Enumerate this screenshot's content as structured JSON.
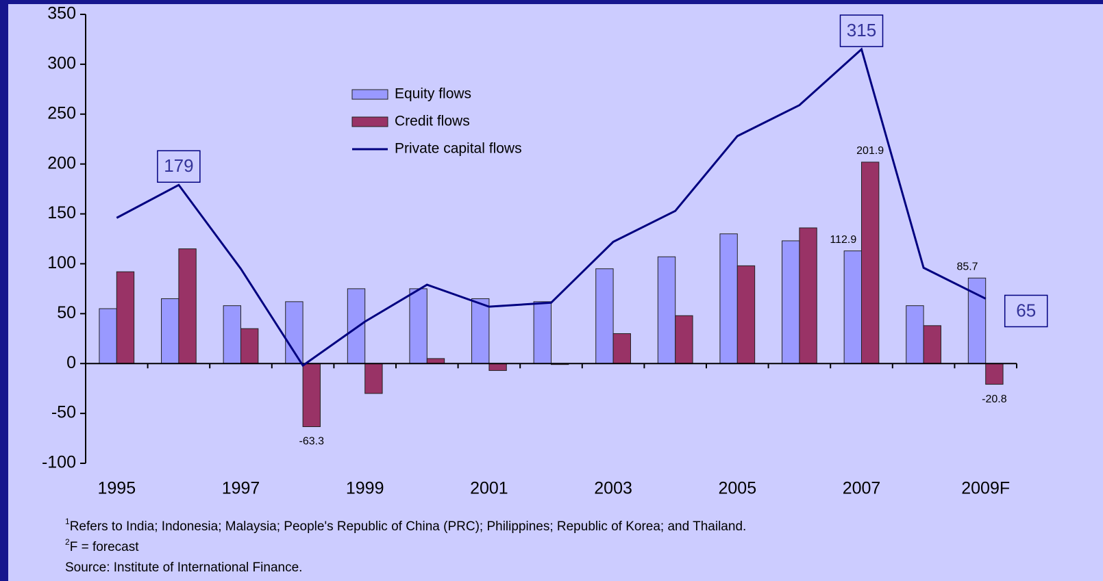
{
  "chart_data": {
    "type": "bar_line",
    "categories": [
      "1995",
      null,
      "1997",
      null,
      "1999",
      null,
      "2001",
      null,
      "2003",
      null,
      "2005",
      null,
      "2007",
      null,
      "2009F"
    ],
    "series": [
      {
        "name": "Equity flows",
        "type": "bar",
        "color": "#9999ff",
        "values": [
          55,
          65,
          58,
          62,
          75,
          75,
          65,
          62,
          95,
          107,
          130,
          123,
          112.9,
          58,
          85.7
        ],
        "value_labels": [
          null,
          null,
          null,
          null,
          null,
          null,
          null,
          null,
          null,
          null,
          null,
          null,
          "112.9",
          null,
          "85.7"
        ]
      },
      {
        "name": "Credit flows",
        "type": "bar",
        "color": "#993366",
        "values": [
          92,
          115,
          35,
          -63.3,
          -30,
          5,
          -7,
          -1,
          30,
          48,
          98,
          136,
          201.9,
          38,
          -20.8
        ],
        "value_labels": [
          null,
          null,
          null,
          "-63.3",
          null,
          null,
          null,
          null,
          null,
          null,
          null,
          null,
          "201.9",
          null,
          "-20.8"
        ]
      },
      {
        "name": "Private capital flows",
        "type": "line",
        "color": "#000080",
        "values": [
          146,
          179,
          95,
          -2,
          42,
          79,
          57,
          61,
          122,
          153,
          228,
          259,
          315,
          96,
          65
        ],
        "value_labels": [
          null,
          "179",
          null,
          null,
          null,
          null,
          null,
          null,
          null,
          null,
          null,
          null,
          "315",
          null,
          "65"
        ]
      }
    ],
    "ylim": [
      -100,
      350
    ],
    "yticks": [
      -100,
      -50,
      0,
      50,
      100,
      150,
      200,
      250,
      300,
      350
    ],
    "legend": "top-center",
    "footnotes": [
      {
        "sup": "1",
        "text": "Refers to India; Indonesia; Malaysia; People's Republic of China (PRC); Philippines; Republic of Korea; and Thailand."
      },
      {
        "sup": "2",
        "text": "F = forecast"
      }
    ],
    "source": "Source: Institute of International Finance."
  }
}
